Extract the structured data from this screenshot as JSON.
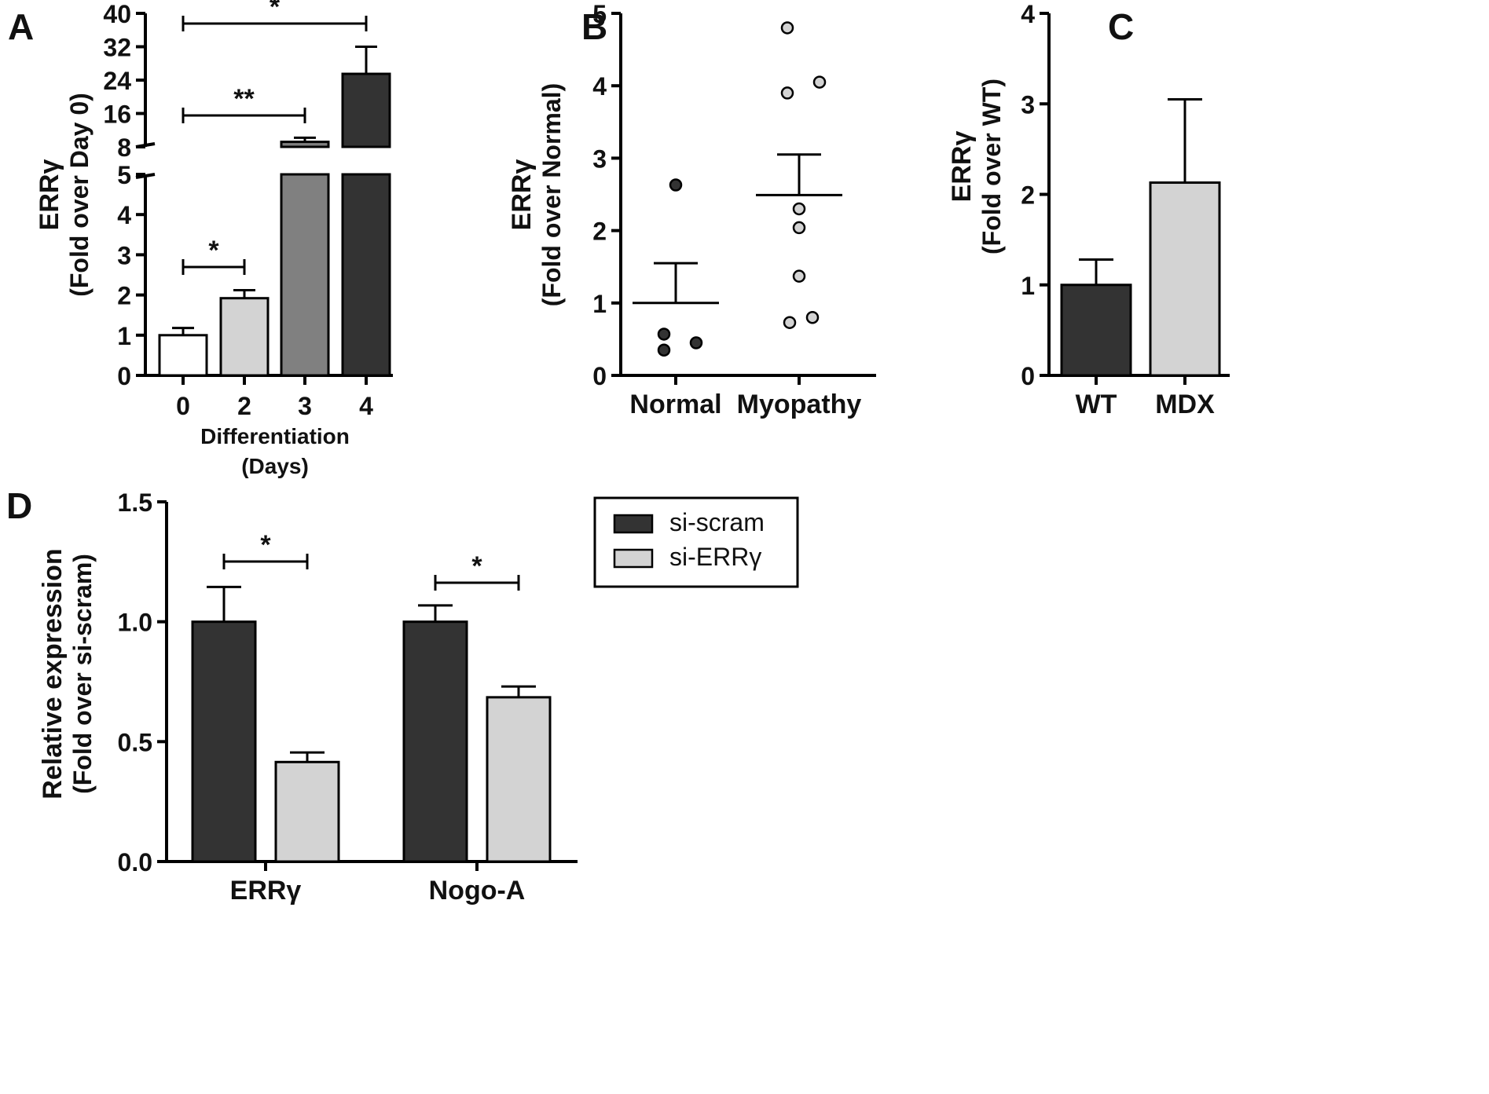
{
  "figure": {
    "colors": {
      "dark": "#333333",
      "medium": "#808080",
      "light": "#d3d3d3",
      "white": "#ffffff",
      "axis": "#000000"
    }
  },
  "chart_data": [
    {
      "panel": "A",
      "type": "bar",
      "ylabel_line1": "ERRγ",
      "ylabel_line2": "(Fold over Day 0)",
      "xlabel_line1": "Differentiation",
      "xlabel_line2": "(Days)",
      "categories": [
        "0",
        "2",
        "3",
        "4"
      ],
      "values": [
        1.0,
        1.92,
        9.2,
        25.5
      ],
      "errors": [
        0.18,
        0.2,
        1.0,
        6.5
      ],
      "fills": [
        "white",
        "light",
        "medium",
        "dark"
      ],
      "axis_break": {
        "lower_range": [
          0,
          5
        ],
        "upper_range": [
          8,
          40
        ]
      },
      "lower_ticks": [
        "0",
        "1",
        "2",
        "3",
        "4",
        "5"
      ],
      "upper_ticks": [
        "8",
        "16",
        "24",
        "32",
        "40"
      ],
      "significance": [
        {
          "from": "0",
          "to": "2",
          "label": "*"
        },
        {
          "from": "0",
          "to": "3",
          "label": "**"
        },
        {
          "from": "0",
          "to": "4",
          "label": "*"
        }
      ]
    },
    {
      "panel": "B",
      "type": "scatter",
      "ylabel_line1": "ERRγ",
      "ylabel_line2": "(Fold over Normal)",
      "ylim": [
        0,
        5
      ],
      "yticks": [
        "0",
        "1",
        "2",
        "3",
        "4",
        "5"
      ],
      "groups": [
        {
          "name": "Normal",
          "fill": "dark",
          "points": [
            2.63,
            0.57,
            0.45,
            0.35
          ],
          "mean": 1.0,
          "sem_high": 1.55
        },
        {
          "name": "Myopathy",
          "fill": "light",
          "points": [
            4.8,
            4.05,
            3.9,
            2.3,
            2.04,
            1.37,
            0.8,
            0.73
          ],
          "mean": 2.49,
          "sem_high": 3.05
        }
      ]
    },
    {
      "panel": "C",
      "type": "bar",
      "ylabel_line1": "ERRγ",
      "ylabel_line2": "(Fold over WT)",
      "ylim": [
        0,
        4
      ],
      "yticks": [
        "0",
        "1",
        "2",
        "3",
        "4"
      ],
      "categories": [
        "WT",
        "MDX"
      ],
      "values": [
        1.0,
        2.13
      ],
      "errors": [
        0.28,
        0.92
      ],
      "fills": [
        "dark",
        "light"
      ]
    },
    {
      "panel": "D",
      "type": "bar",
      "ylabel_line1": "Relative expression",
      "ylabel_line2": "(Fold over si-scram)",
      "ylim": [
        0,
        1.5
      ],
      "yticks": [
        "0.0",
        "0.5",
        "1.0",
        "1.5"
      ],
      "categories": [
        "ERRγ",
        "Nogo-A"
      ],
      "series": [
        {
          "name": "si-scram",
          "fill": "dark",
          "values": [
            1.0,
            1.0
          ],
          "errors": [
            0.145,
            0.068
          ]
        },
        {
          "name": "si-ERRγ",
          "fill": "light",
          "values": [
            0.415,
            0.685
          ],
          "errors": [
            0.04,
            0.045
          ]
        }
      ],
      "legend_position": "top-right",
      "significance": [
        {
          "category": "ERRγ",
          "label": "*"
        },
        {
          "category": "Nogo-A",
          "label": "*"
        }
      ]
    }
  ]
}
